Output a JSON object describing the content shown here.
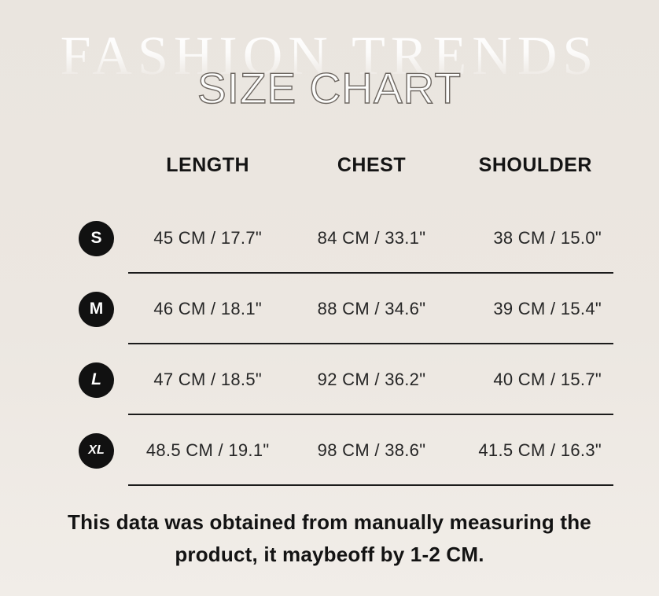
{
  "banner": {
    "watermark": "FASHION TRENDS",
    "title": "SIZE CHART"
  },
  "table": {
    "columns": [
      "LENGTH",
      "CHEST",
      "SHOULDER"
    ],
    "rows": [
      {
        "size": "S",
        "length": "45 CM / 17.7\"",
        "chest": "84 CM / 33.1\"",
        "shoulder": "38 CM / 15.0\""
      },
      {
        "size": "M",
        "length": "46 CM / 18.1\"",
        "chest": "88 CM / 34.6\"",
        "shoulder": "39 CM / 15.4\""
      },
      {
        "size": "L",
        "length": "47 CM / 18.5\"",
        "chest": "92 CM / 36.2\"",
        "shoulder": "40 CM / 15.7\""
      },
      {
        "size": "XL",
        "length": "48.5 CM / 19.1\"",
        "chest": "98 CM / 38.6\"",
        "shoulder": "41.5 CM / 16.3\""
      }
    ]
  },
  "footer": {
    "line1": "This data was obtained from manually measuring the",
    "line2": "product, it maybeoff by 1-2 CM."
  },
  "colors": {
    "background": "#ece7e1",
    "text": "#1a1a1a",
    "badge": "#111111",
    "divider": "#1b1b1b",
    "title_fill": "#fdfdfc",
    "title_outline": "#6e6862"
  }
}
